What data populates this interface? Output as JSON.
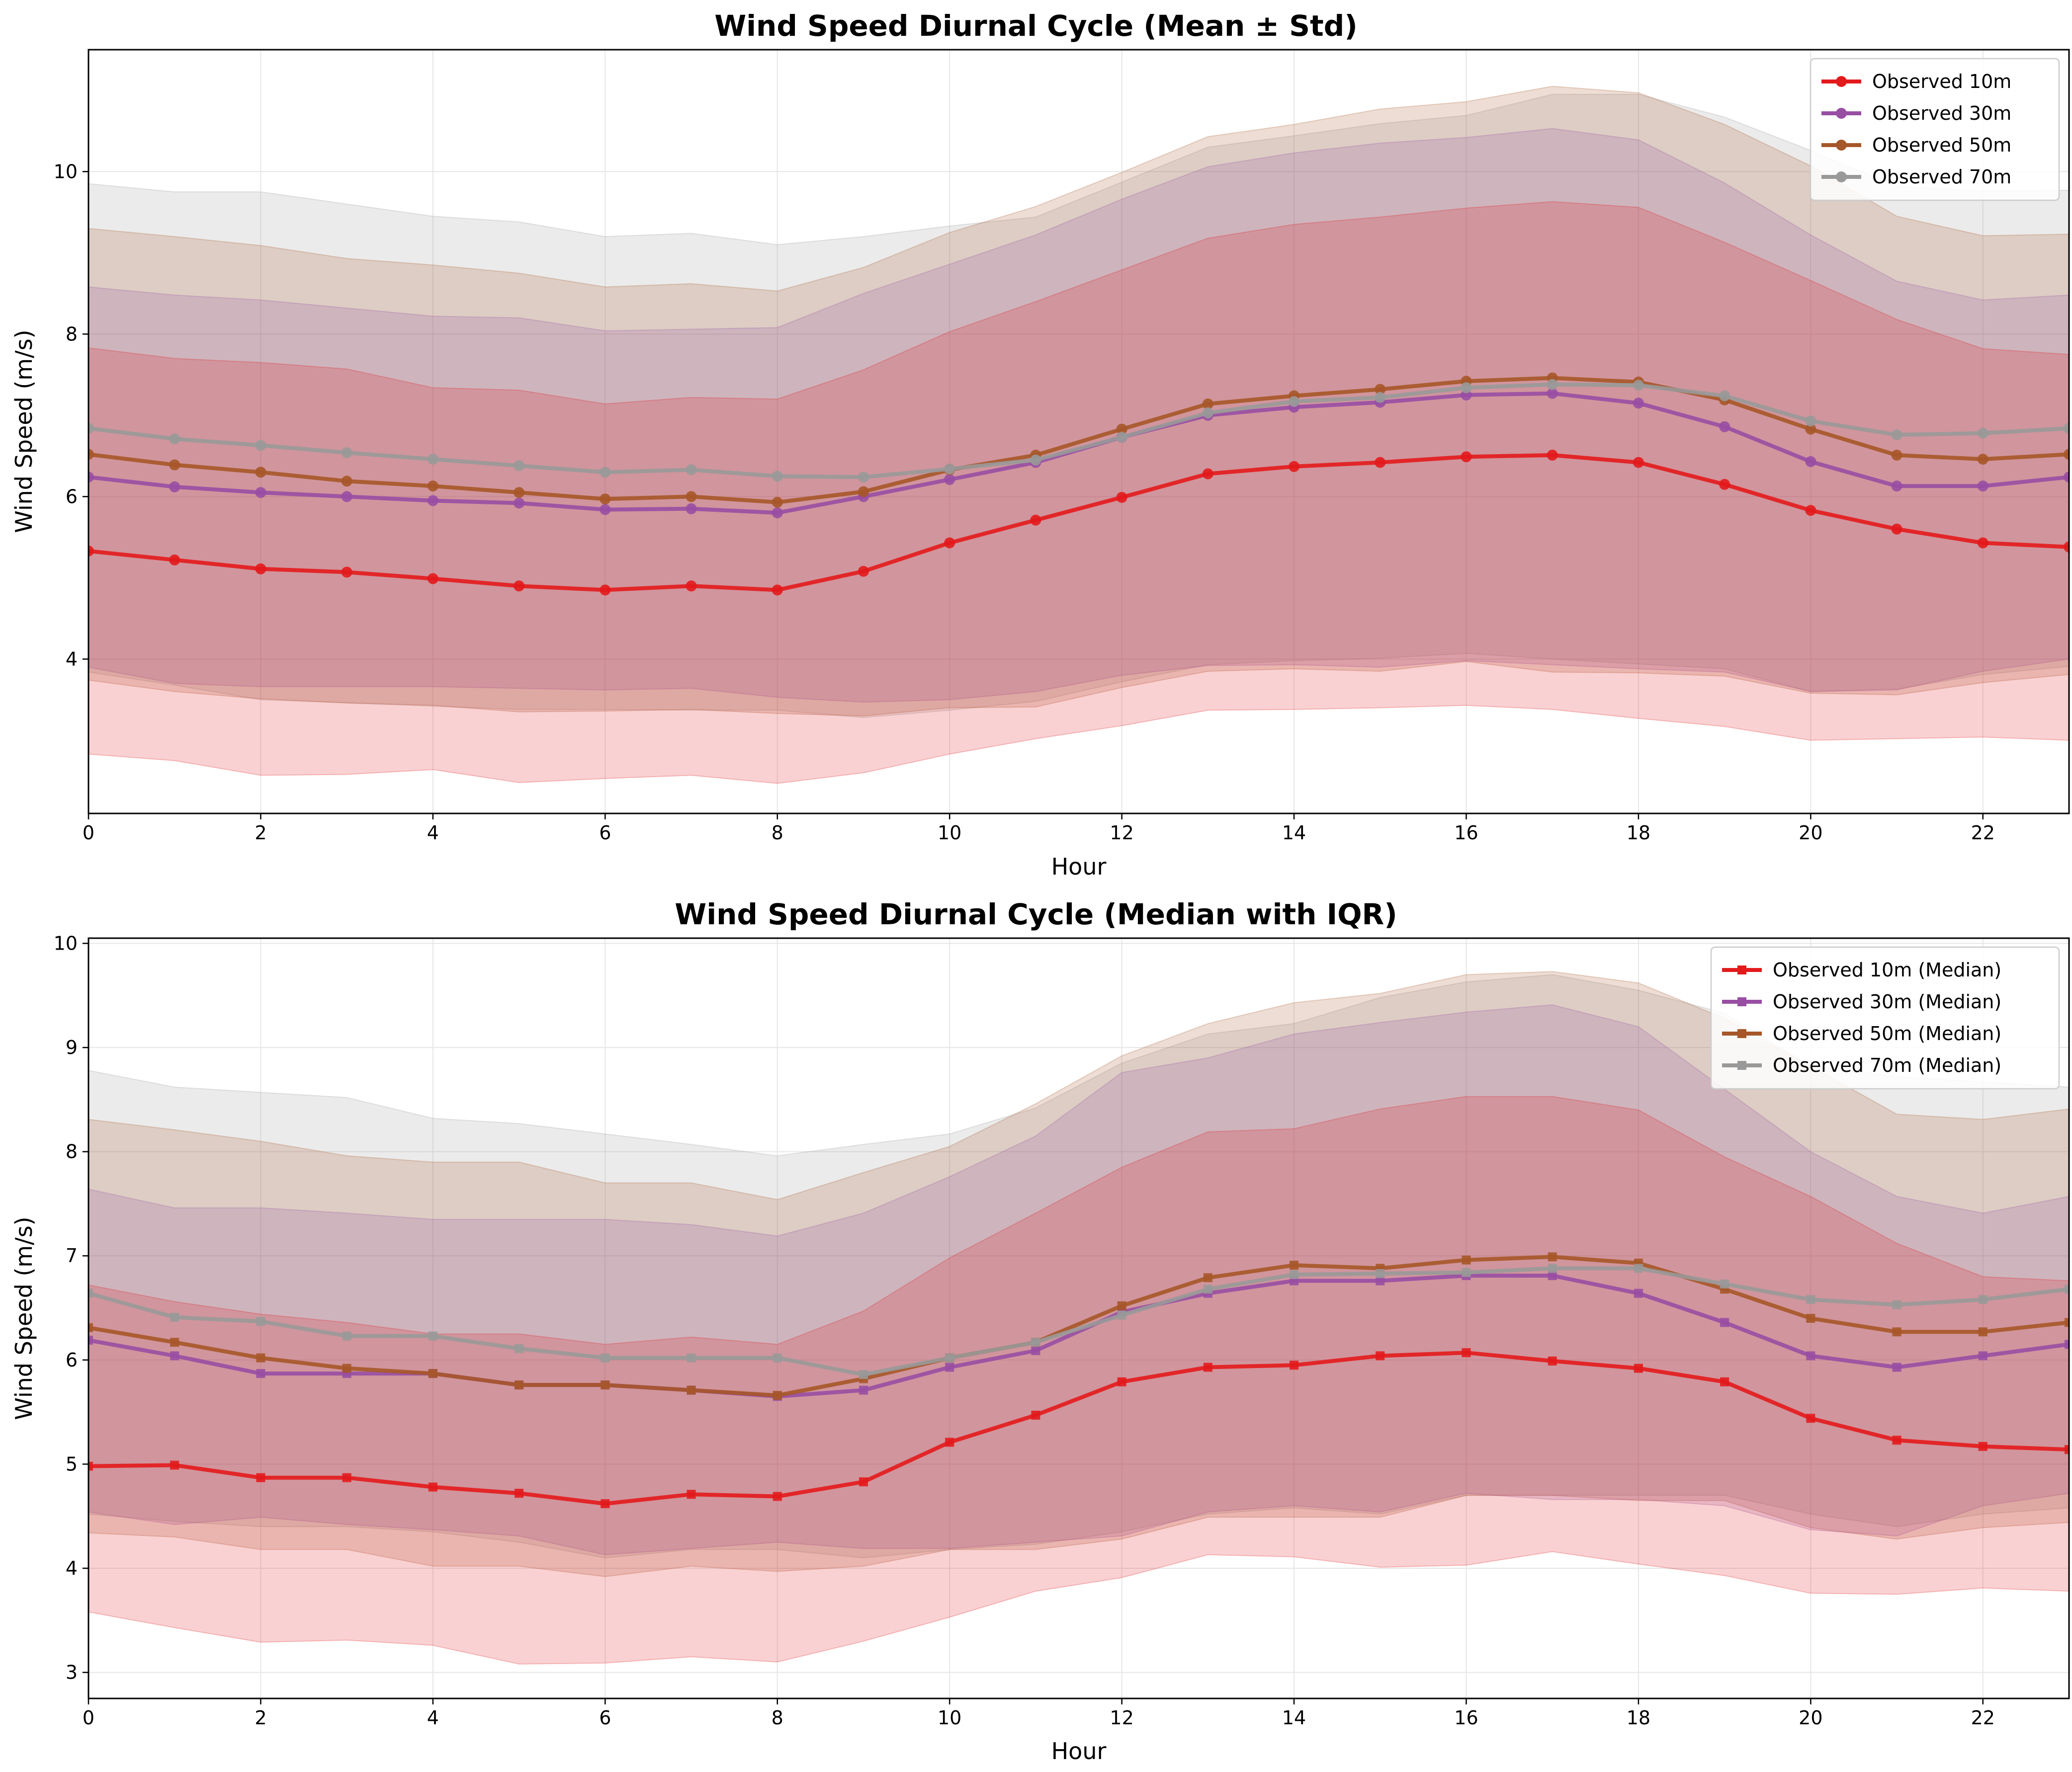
{
  "chart_data": [
    {
      "type": "line",
      "title": "Wind Speed Diurnal Cycle (Mean ± Std)",
      "xlabel": "Hour",
      "ylabel": "Wind Speed (m/s)",
      "xlim": [
        0,
        23
      ],
      "ylim": [
        2.1,
        11.5
      ],
      "xticks": [
        0,
        2,
        4,
        6,
        8,
        10,
        12,
        14,
        16,
        18,
        20,
        22
      ],
      "yticks": [
        4,
        6,
        8,
        10
      ],
      "grid": true,
      "legend_position": "top-right",
      "band": "mean ± std",
      "marker": "circle",
      "x": [
        0,
        1,
        2,
        3,
        4,
        5,
        6,
        7,
        8,
        9,
        10,
        11,
        12,
        13,
        14,
        15,
        16,
        17,
        18,
        19,
        20,
        21,
        22,
        23
      ],
      "series": [
        {
          "name": "Observed 10m",
          "color": "#e31a1c",
          "values": [
            5.33,
            5.22,
            5.11,
            5.07,
            4.99,
            4.9,
            4.85,
            4.9,
            4.85,
            5.08,
            5.43,
            5.71,
            5.99,
            6.28,
            6.37,
            6.42,
            6.49,
            6.51,
            6.42,
            6.15,
            5.83,
            5.6,
            5.43,
            5.38
          ],
          "lower": [
            2.83,
            2.75,
            2.57,
            2.58,
            2.64,
            2.48,
            2.53,
            2.57,
            2.47,
            2.6,
            2.83,
            3.02,
            3.18,
            3.37,
            3.38,
            3.4,
            3.43,
            3.38,
            3.27,
            3.17,
            3.0,
            3.02,
            3.04,
            3.0
          ],
          "upper": [
            7.83,
            7.7,
            7.65,
            7.57,
            7.34,
            7.31,
            7.14,
            7.22,
            7.2,
            7.56,
            8.03,
            8.4,
            8.79,
            9.18,
            9.35,
            9.44,
            9.55,
            9.63,
            9.56,
            9.13,
            8.66,
            8.18,
            7.82,
            7.75
          ]
        },
        {
          "name": "Observed 30m",
          "color": "#984ea3",
          "values": [
            6.24,
            6.12,
            6.05,
            6.0,
            5.95,
            5.92,
            5.84,
            5.85,
            5.8,
            6.0,
            6.21,
            6.42,
            6.73,
            7.0,
            7.1,
            7.16,
            7.25,
            7.27,
            7.15,
            6.86,
            6.43,
            6.13,
            6.13,
            6.24
          ],
          "lower": [
            3.9,
            3.7,
            3.66,
            3.66,
            3.66,
            3.64,
            3.62,
            3.64,
            3.53,
            3.47,
            3.5,
            3.6,
            3.8,
            3.92,
            3.93,
            3.9,
            3.98,
            3.93,
            3.88,
            3.84,
            3.6,
            3.62,
            3.85,
            4.0
          ],
          "upper": [
            8.58,
            8.48,
            8.42,
            8.32,
            8.22,
            8.2,
            8.04,
            8.06,
            8.08,
            8.5,
            8.86,
            9.22,
            9.66,
            10.06,
            10.23,
            10.35,
            10.42,
            10.53,
            10.39,
            9.86,
            9.22,
            8.65,
            8.42,
            8.48
          ]
        },
        {
          "name": "Observed 50m",
          "color": "#a65628",
          "values": [
            6.52,
            6.39,
            6.3,
            6.19,
            6.13,
            6.05,
            5.97,
            6.0,
            5.93,
            6.06,
            6.33,
            6.51,
            6.83,
            7.14,
            7.24,
            7.32,
            7.42,
            7.46,
            7.41,
            7.19,
            6.83,
            6.51,
            6.46,
            6.52
          ],
          "lower": [
            3.74,
            3.6,
            3.51,
            3.46,
            3.43,
            3.35,
            3.36,
            3.38,
            3.33,
            3.3,
            3.4,
            3.41,
            3.65,
            3.85,
            3.88,
            3.85,
            3.97,
            3.84,
            3.83,
            3.79,
            3.58,
            3.56,
            3.71,
            3.81
          ],
          "upper": [
            9.3,
            9.2,
            9.09,
            8.93,
            8.85,
            8.75,
            8.58,
            8.62,
            8.53,
            8.82,
            9.25,
            9.57,
            9.99,
            10.43,
            10.58,
            10.77,
            10.86,
            11.05,
            10.97,
            10.58,
            10.07,
            9.45,
            9.21,
            9.23
          ]
        },
        {
          "name": "Observed 70m",
          "color": "#999999",
          "values": [
            6.84,
            6.71,
            6.63,
            6.54,
            6.46,
            6.38,
            6.3,
            6.33,
            6.25,
            6.24,
            6.34,
            6.45,
            6.73,
            7.03,
            7.17,
            7.22,
            7.34,
            7.38,
            7.37,
            7.24,
            6.93,
            6.76,
            6.78,
            6.84
          ],
          "lower": [
            3.84,
            3.68,
            3.5,
            3.46,
            3.42,
            3.38,
            3.38,
            3.37,
            3.37,
            3.28,
            3.37,
            3.48,
            3.72,
            3.93,
            3.98,
            4.01,
            4.07,
            4.0,
            3.94,
            3.88,
            3.6,
            3.63,
            3.81,
            3.91
          ],
          "upper": [
            9.85,
            9.75,
            9.75,
            9.6,
            9.45,
            9.38,
            9.2,
            9.24,
            9.1,
            9.2,
            9.33,
            9.44,
            9.87,
            10.3,
            10.44,
            10.59,
            10.69,
            10.95,
            10.95,
            10.67,
            10.26,
            9.82,
            9.76,
            9.77
          ]
        }
      ]
    },
    {
      "type": "line",
      "title": "Wind Speed Diurnal Cycle (Median with IQR)",
      "xlabel": "Hour",
      "ylabel": "Wind Speed (m/s)",
      "xlim": [
        0,
        23
      ],
      "ylim": [
        2.75,
        10.05
      ],
      "xticks": [
        0,
        2,
        4,
        6,
        8,
        10,
        12,
        14,
        16,
        18,
        20,
        22
      ],
      "yticks": [
        3,
        4,
        5,
        6,
        7,
        8,
        9,
        10
      ],
      "grid": true,
      "legend_position": "top-right",
      "band": "IQR",
      "marker": "square",
      "x": [
        0,
        1,
        2,
        3,
        4,
        5,
        6,
        7,
        8,
        9,
        10,
        11,
        12,
        13,
        14,
        15,
        16,
        17,
        18,
        19,
        20,
        21,
        22,
        23
      ],
      "series": [
        {
          "name": "Observed 10m (Median)",
          "color": "#e31a1c",
          "values": [
            4.98,
            4.99,
            4.87,
            4.87,
            4.78,
            4.72,
            4.62,
            4.71,
            4.69,
            4.83,
            5.21,
            5.47,
            5.79,
            5.93,
            5.95,
            6.04,
            6.07,
            5.99,
            5.92,
            5.79,
            5.44,
            5.23,
            5.17,
            5.14
          ],
          "lower": [
            3.58,
            3.43,
            3.29,
            3.31,
            3.26,
            3.08,
            3.09,
            3.15,
            3.1,
            3.3,
            3.53,
            3.78,
            3.91,
            4.13,
            4.11,
            4.01,
            4.03,
            4.16,
            4.04,
            3.93,
            3.76,
            3.75,
            3.81,
            3.78
          ],
          "upper": [
            6.72,
            6.56,
            6.44,
            6.36,
            6.25,
            6.25,
            6.15,
            6.22,
            6.15,
            6.47,
            6.98,
            7.41,
            7.85,
            8.19,
            8.22,
            8.41,
            8.53,
            8.53,
            8.4,
            7.95,
            7.57,
            7.12,
            6.8,
            6.76
          ]
        },
        {
          "name": "Observed 30m (Median)",
          "color": "#984ea3",
          "values": [
            6.19,
            6.04,
            5.87,
            5.87,
            5.87,
            5.76,
            5.76,
            5.71,
            5.65,
            5.71,
            5.93,
            6.09,
            6.46,
            6.64,
            6.76,
            6.76,
            6.81,
            6.81,
            6.64,
            6.36,
            6.04,
            5.93,
            6.04,
            6.15
          ],
          "lower": [
            4.54,
            4.42,
            4.49,
            4.42,
            4.37,
            4.31,
            4.13,
            4.19,
            4.25,
            4.19,
            4.19,
            4.25,
            4.31,
            4.54,
            4.6,
            4.54,
            4.72,
            4.66,
            4.66,
            4.6,
            4.37,
            4.31,
            4.6,
            4.72
          ],
          "upper": [
            7.64,
            7.46,
            7.46,
            7.41,
            7.35,
            7.35,
            7.35,
            7.3,
            7.19,
            7.41,
            7.76,
            8.15,
            8.76,
            8.9,
            9.13,
            9.24,
            9.34,
            9.41,
            9.2,
            8.6,
            8.0,
            7.57,
            7.41,
            7.57
          ]
        },
        {
          "name": "Observed 50m (Median)",
          "color": "#a65628",
          "values": [
            6.31,
            6.17,
            6.02,
            5.92,
            5.87,
            5.76,
            5.76,
            5.71,
            5.66,
            5.82,
            6.02,
            6.17,
            6.52,
            6.79,
            6.91,
            6.88,
            6.96,
            6.99,
            6.93,
            6.68,
            6.4,
            6.27,
            6.27,
            6.36
          ],
          "lower": [
            4.34,
            4.3,
            4.18,
            4.18,
            4.02,
            4.02,
            3.92,
            4.02,
            3.97,
            4.02,
            4.18,
            4.18,
            4.28,
            4.49,
            4.49,
            4.49,
            4.7,
            4.7,
            4.65,
            4.65,
            4.39,
            4.28,
            4.39,
            4.44
          ],
          "upper": [
            8.31,
            8.21,
            8.1,
            7.96,
            7.9,
            7.9,
            7.7,
            7.7,
            7.54,
            7.8,
            8.05,
            8.46,
            8.92,
            9.23,
            9.43,
            9.52,
            9.7,
            9.73,
            9.62,
            9.28,
            8.82,
            8.36,
            8.31,
            8.41
          ]
        },
        {
          "name": "Observed 70m (Median)",
          "color": "#999999",
          "values": [
            6.64,
            6.41,
            6.37,
            6.23,
            6.23,
            6.11,
            6.02,
            6.02,
            6.02,
            5.86,
            6.02,
            6.17,
            6.43,
            6.68,
            6.82,
            6.83,
            6.84,
            6.88,
            6.88,
            6.73,
            6.58,
            6.53,
            6.58,
            6.68
          ],
          "lower": [
            4.52,
            4.45,
            4.4,
            4.4,
            4.35,
            4.25,
            4.1,
            4.18,
            4.18,
            4.1,
            4.18,
            4.23,
            4.35,
            4.52,
            4.58,
            4.52,
            4.7,
            4.7,
            4.7,
            4.7,
            4.52,
            4.4,
            4.52,
            4.58
          ],
          "upper": [
            8.78,
            8.62,
            8.57,
            8.52,
            8.32,
            8.27,
            8.17,
            8.07,
            7.96,
            8.07,
            8.17,
            8.42,
            8.85,
            9.13,
            9.23,
            9.48,
            9.63,
            9.7,
            9.55,
            9.33,
            8.82,
            8.72,
            8.67,
            8.62
          ]
        }
      ]
    }
  ]
}
